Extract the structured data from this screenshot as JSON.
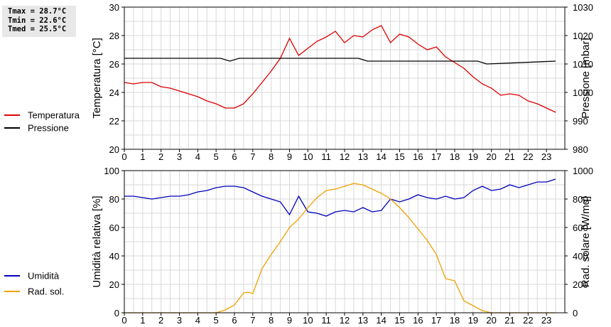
{
  "stats": [
    "Tmax = 28.7°C",
    "Tmin = 22.6°C",
    "Tmed = 25.5°C"
  ],
  "chart_data": [
    {
      "type": "line",
      "xlim": [
        0,
        24
      ],
      "x_ticks": [
        "0",
        "1",
        "2",
        "3",
        "4",
        "5",
        "6",
        "7",
        "8",
        "9",
        "10",
        "11",
        "12",
        "13",
        "14",
        "15",
        "16",
        "17",
        "18",
        "19",
        "20",
        "21",
        "22",
        "23"
      ],
      "grid": true,
      "ylabel": "Temperatura [°C]",
      "ylim": [
        20,
        30
      ],
      "y_ticks": [
        "20",
        "22",
        "24",
        "26",
        "28",
        "30"
      ],
      "y2label": "Pressione [mbar]",
      "y2lim": [
        980,
        1030
      ],
      "y2_ticks": [
        "980",
        "990",
        "1000",
        "1010",
        "1020",
        "1030"
      ],
      "legend_position": "left",
      "series": [
        {
          "name": "Temperatura",
          "axis": "left",
          "color": "#dd0000",
          "x": [
            0,
            0.5,
            1,
            1.5,
            2,
            2.5,
            3,
            3.5,
            4,
            4.5,
            5,
            5.5,
            6,
            6.5,
            7,
            7.5,
            8,
            8.5,
            9,
            9.5,
            10,
            10.5,
            11,
            11.5,
            12,
            12.5,
            13,
            13.5,
            14,
            14.5,
            15,
            15.5,
            16,
            16.5,
            17,
            17.5,
            18,
            18.5,
            19,
            19.5,
            20,
            20.5,
            21,
            21.5,
            22,
            22.5,
            23,
            23.5
          ],
          "y": [
            24.7,
            24.6,
            24.7,
            24.7,
            24.4,
            24.3,
            24.1,
            23.9,
            23.7,
            23.4,
            23.2,
            22.9,
            22.9,
            23.2,
            23.9,
            24.7,
            25.5,
            26.4,
            27.8,
            26.6,
            27.1,
            27.6,
            27.9,
            28.3,
            27.5,
            28.0,
            27.9,
            28.4,
            28.7,
            27.5,
            28.1,
            27.9,
            27.4,
            27.0,
            27.2,
            26.5,
            26.1,
            25.7,
            25.1,
            24.6,
            24.3,
            23.8,
            23.9,
            23.8,
            23.4,
            23.2,
            22.9,
            22.6
          ]
        },
        {
          "name": "Pressione",
          "axis": "right",
          "color": "#000000",
          "x": [
            0,
            5.25,
            5.75,
            6.25,
            12.75,
            13.25,
            19.25,
            19.75,
            23.5
          ],
          "y": [
            1012,
            1012,
            1011,
            1012,
            1012,
            1011,
            1011,
            1010,
            1011
          ]
        }
      ]
    },
    {
      "type": "line",
      "xlim": [
        0,
        24
      ],
      "x_ticks": [
        "0",
        "1",
        "2",
        "3",
        "4",
        "5",
        "6",
        "7",
        "8",
        "9",
        "10",
        "11",
        "12",
        "13",
        "14",
        "15",
        "16",
        "17",
        "18",
        "19",
        "20",
        "21",
        "22",
        "23"
      ],
      "grid": true,
      "ylabel": "Umidità relativa [%]",
      "ylim": [
        0,
        100
      ],
      "y_ticks": [
        "0",
        "20",
        "40",
        "60",
        "80",
        "100"
      ],
      "y2label": "Rad. solare [W/mq]",
      "y2lim": [
        0,
        1000
      ],
      "y2_ticks": [
        "0",
        "200",
        "400",
        "600",
        "800",
        "1000"
      ],
      "legend_position": "left",
      "series": [
        {
          "name": "Umidità",
          "axis": "left",
          "color": "#0000bb",
          "x": [
            0,
            0.5,
            1,
            1.5,
            2,
            2.5,
            3,
            3.5,
            4,
            4.5,
            5,
            5.5,
            6,
            6.5,
            7,
            7.5,
            8,
            8.5,
            9,
            9.5,
            10,
            10.5,
            11,
            11.5,
            12,
            12.5,
            13,
            13.5,
            14,
            14.5,
            15,
            15.5,
            16,
            16.5,
            17,
            17.5,
            18,
            18.5,
            19,
            19.5,
            20,
            20.5,
            21,
            21.5,
            22,
            22.5,
            23,
            23.5
          ],
          "y": [
            82,
            82,
            81,
            80,
            81,
            82,
            82,
            83,
            85,
            86,
            88,
            89,
            89,
            88,
            85,
            82,
            80,
            78,
            69,
            82,
            71,
            70,
            68,
            71,
            72,
            71,
            74,
            71,
            72,
            80,
            78,
            80,
            83,
            81,
            80,
            82,
            80,
            81,
            86,
            89,
            86,
            87,
            90,
            88,
            90,
            92,
            92,
            94
          ]
        },
        {
          "name": "Rad. sol.",
          "axis": "right",
          "color": "#f0a000",
          "x": [
            0,
            5,
            5.5,
            6,
            6.5,
            6.75,
            7,
            7.5,
            8,
            8.5,
            9,
            9.5,
            10,
            10.5,
            11,
            11.5,
            12,
            12.5,
            13,
            13.5,
            14,
            14.5,
            15,
            15.5,
            16,
            16.5,
            17,
            17.5,
            18,
            18.5,
            19,
            19.5,
            20,
            20.5,
            21,
            21.5,
            22,
            22.5,
            23,
            23.5
          ],
          "y": [
            0,
            0,
            20,
            55,
            140,
            145,
            135,
            310,
            410,
            500,
            600,
            660,
            740,
            810,
            860,
            870,
            890,
            910,
            900,
            870,
            840,
            800,
            740,
            670,
            590,
            510,
            410,
            240,
            225,
            85,
            50,
            15,
            0,
            0,
            0,
            0,
            0,
            0,
            0,
            0
          ]
        }
      ]
    }
  ]
}
